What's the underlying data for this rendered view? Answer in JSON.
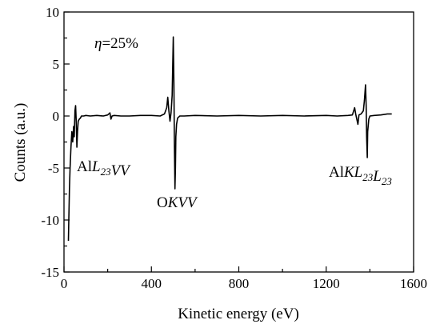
{
  "chart_data": {
    "type": "line",
    "xlabel": "Kinetic energy (eV)",
    "ylabel": "Counts (a.u.)",
    "xlim": [
      0,
      1600
    ],
    "ylim": [
      -15,
      10
    ],
    "xticks": [
      "0",
      "400",
      "800",
      "1200",
      "1600"
    ],
    "yticks": [
      "10",
      "5",
      "0",
      "-5",
      "-10",
      "-15"
    ],
    "grid": false,
    "legend": "none",
    "line_color": "#000000",
    "annotations": [
      {
        "text": "η=25%",
        "parts": [
          {
            "t": "η",
            "i": true
          },
          {
            "t": "=25%"
          }
        ]
      },
      {
        "text": "AlL23VV",
        "parts": [
          {
            "t": "Al"
          },
          {
            "t": "L",
            "i": true
          },
          {
            "t": "23",
            "i": true,
            "sub": true
          },
          {
            "t": "VV",
            "i": true
          }
        ]
      },
      {
        "text": "OKVV",
        "parts": [
          {
            "t": "O"
          },
          {
            "t": "KVV",
            "i": true
          }
        ]
      },
      {
        "text": "AlKL23L23",
        "parts": [
          {
            "t": "Al"
          },
          {
            "t": "KL",
            "i": true
          },
          {
            "t": "23",
            "i": true,
            "sub": true
          },
          {
            "t": "L",
            "i": true
          },
          {
            "t": "23",
            "i": true,
            "sub": true
          }
        ]
      }
    ],
    "series": [
      {
        "x": [
          20,
          22,
          25,
          28,
          32,
          36,
          40,
          44,
          47,
          50,
          53,
          56,
          59,
          62,
          65,
          70,
          75,
          80,
          90,
          100,
          120,
          150,
          180,
          200,
          210,
          215,
          220,
          230,
          260,
          300,
          350,
          400,
          440,
          460,
          470,
          475,
          480,
          485,
          490,
          495,
          500,
          503,
          505,
          508,
          510,
          512,
          515,
          520,
          530,
          550,
          600,
          700,
          800,
          900,
          1000,
          1100,
          1200,
          1250,
          1300,
          1320,
          1330,
          1335,
          1340,
          1345,
          1350,
          1360,
          1370,
          1375,
          1380,
          1383,
          1385,
          1388,
          1390,
          1395,
          1400,
          1420,
          1450,
          1480,
          1500
        ],
        "y": [
          -12,
          -10,
          -7,
          -5,
          -3,
          -1.5,
          -2.5,
          -1,
          -2,
          0.5,
          1,
          -0.5,
          -3,
          -1.5,
          -0.5,
          -0.3,
          -0.2,
          0,
          0,
          0.05,
          0,
          0.05,
          0,
          0.1,
          0.3,
          -0.3,
          0,
          0.05,
          0,
          0,
          0.05,
          0.05,
          0,
          0.2,
          0.8,
          1.8,
          0.5,
          -0.5,
          0.3,
          2,
          7.6,
          3,
          -2,
          -7,
          -5,
          -2,
          -0.8,
          -0.2,
          0,
          0,
          0.05,
          0,
          0.05,
          0,
          0.05,
          0,
          0.05,
          0,
          0.05,
          0.1,
          0.8,
          0.2,
          -0.3,
          -0.8,
          0.1,
          0.2,
          0.5,
          1.5,
          3,
          1,
          -2,
          -4,
          -1.5,
          -0.3,
          0,
          0.05,
          0.1,
          0.2,
          0.2
        ]
      }
    ]
  }
}
